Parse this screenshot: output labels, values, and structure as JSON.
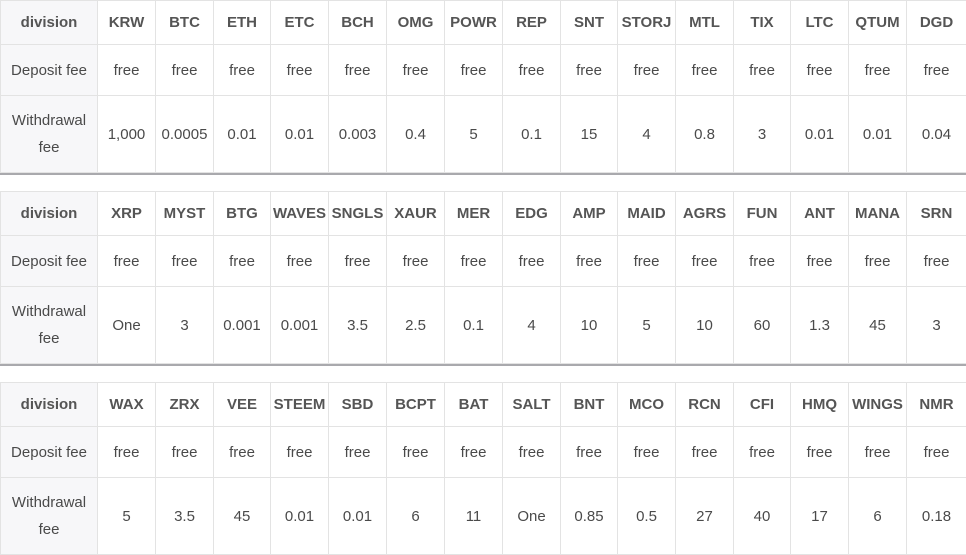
{
  "tables": [
    {
      "header_label": "division",
      "deposit_label": "Deposit fee",
      "withdrawal_label": "Withdrawal fee",
      "coins": [
        "KRW",
        "BTC",
        "ETH",
        "ETC",
        "BCH",
        "OMG",
        "POWR",
        "REP",
        "SNT",
        "STORJ",
        "MTL",
        "TIX",
        "LTC",
        "QTUM",
        "DGD"
      ],
      "deposit": [
        "free",
        "free",
        "free",
        "free",
        "free",
        "free",
        "free",
        "free",
        "free",
        "free",
        "free",
        "free",
        "free",
        "free",
        "free"
      ],
      "withdrawal": [
        "1,000",
        "0.0005",
        "0.01",
        "0.01",
        "0.003",
        "0.4",
        "5",
        "0.1",
        "15",
        "4",
        "0.8",
        "3",
        "0.01",
        "0.01",
        "0.04"
      ]
    },
    {
      "header_label": "division",
      "deposit_label": "Deposit fee",
      "withdrawal_label": "Withdrawal fee",
      "coins": [
        "XRP",
        "MYST",
        "BTG",
        "WAVES",
        "SNGLS",
        "XAUR",
        "MER",
        "EDG",
        "AMP",
        "MAID",
        "AGRS",
        "FUN",
        "ANT",
        "MANA",
        "SRN"
      ],
      "deposit": [
        "free",
        "free",
        "free",
        "free",
        "free",
        "free",
        "free",
        "free",
        "free",
        "free",
        "free",
        "free",
        "free",
        "free",
        "free"
      ],
      "withdrawal": [
        "One",
        "3",
        "0.001",
        "0.001",
        "3.5",
        "2.5",
        "0.1",
        "4",
        "10",
        "5",
        "10",
        "60",
        "1.3",
        "45",
        "3"
      ]
    },
    {
      "header_label": "division",
      "deposit_label": "Deposit fee",
      "withdrawal_label": "Withdrawal fee",
      "coins": [
        "WAX",
        "ZRX",
        "VEE",
        "STEEM",
        "SBD",
        "BCPT",
        "BAT",
        "SALT",
        "BNT",
        "MCO",
        "RCN",
        "CFI",
        "HMQ",
        "WINGS",
        "NMR"
      ],
      "deposit": [
        "free",
        "free",
        "free",
        "free",
        "free",
        "free",
        "free",
        "free",
        "free",
        "free",
        "free",
        "free",
        "free",
        "free",
        "free"
      ],
      "withdrawal": [
        "5",
        "3.5",
        "45",
        "0.01",
        "0.01",
        "6",
        "11",
        "One",
        "0.85",
        "0.5",
        "27",
        "40",
        "17",
        "6",
        "0.18"
      ]
    }
  ]
}
